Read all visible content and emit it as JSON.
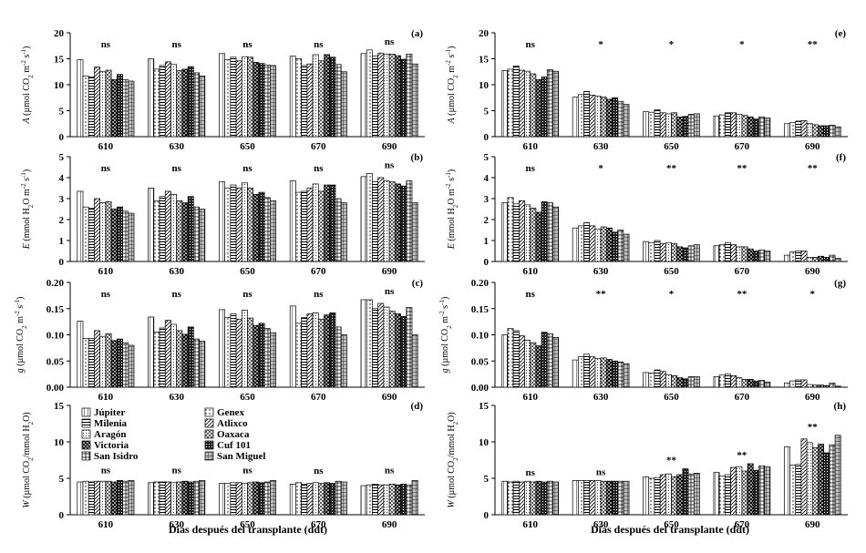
{
  "x_axis_label": "Días después del transplante (ddt)",
  "legend": [
    {
      "label": "Júpiter",
      "pattern": "p0"
    },
    {
      "label": "Genex",
      "pattern": "p1"
    },
    {
      "label": "Milenia",
      "pattern": "p2"
    },
    {
      "label": "Atlixco",
      "pattern": "p3"
    },
    {
      "label": "Aragón",
      "pattern": "p4"
    },
    {
      "label": "Oaxaca",
      "pattern": "p5"
    },
    {
      "label": "Victoria",
      "pattern": "p6"
    },
    {
      "label": "Cuf 101",
      "pattern": "p7"
    },
    {
      "label": "San Isidro",
      "pattern": "p8"
    },
    {
      "label": "San Miguel",
      "pattern": "p9"
    }
  ],
  "chart_data": [
    {
      "id": "a",
      "panel_label": "(a)",
      "type": "bar",
      "ylabel_parts": [
        "A",
        " (µmol CO",
        "2",
        " m",
        "-2",
        " s",
        "-1",
        ")"
      ],
      "ylim": [
        0,
        20
      ],
      "yticks": [
        0,
        5,
        10,
        15,
        20
      ],
      "categories": [
        "610",
        "630",
        "650",
        "670",
        "690"
      ],
      "significance": [
        "ns",
        "ns",
        "ns",
        "ns",
        "ns"
      ],
      "values": [
        [
          14.8,
          11.7,
          11.5,
          13.4,
          12.5,
          12.8,
          11.0,
          12.0,
          11.0,
          10.7
        ],
        [
          15.0,
          13.0,
          13.7,
          14.4,
          13.9,
          12.7,
          13.0,
          13.5,
          12.3,
          11.7
        ],
        [
          16.0,
          14.8,
          15.3,
          14.6,
          15.4,
          15.3,
          14.3,
          14.1,
          13.8,
          13.7
        ],
        [
          15.5,
          15.0,
          13.7,
          14.0,
          15.8,
          14.6,
          15.8,
          15.3,
          13.9,
          12.5
        ],
        [
          16.0,
          16.7,
          15.5,
          16.1,
          15.9,
          15.9,
          15.6,
          14.9,
          15.9,
          14.0
        ]
      ]
    },
    {
      "id": "e",
      "panel_label": "(e)",
      "type": "bar",
      "ylabel_parts": [
        "A",
        " (µmol CO",
        "2",
        " m",
        "-2",
        " s",
        "-1",
        ")"
      ],
      "ylim": [
        0,
        20
      ],
      "yticks": [
        0,
        5,
        10,
        15,
        20
      ],
      "categories": [
        "610",
        "630",
        "650",
        "670",
        "690"
      ],
      "significance": [
        "ns",
        "*",
        "*",
        "*",
        "**"
      ],
      "values": [
        [
          12.7,
          13.0,
          13.6,
          12.8,
          12.6,
          12.1,
          11.0,
          11.5,
          12.9,
          12.6
        ],
        [
          7.6,
          8.1,
          8.7,
          8.0,
          7.8,
          7.6,
          7.2,
          7.5,
          6.8,
          6.2
        ],
        [
          4.8,
          4.7,
          5.2,
          4.6,
          4.4,
          4.6,
          3.8,
          3.9,
          4.3,
          4.4
        ],
        [
          4.0,
          4.2,
          4.6,
          4.6,
          4.3,
          4.1,
          3.8,
          3.4,
          3.8,
          3.6
        ],
        [
          2.5,
          2.7,
          3.0,
          3.1,
          2.5,
          2.3,
          2.1,
          2.1,
          2.2,
          1.9
        ]
      ]
    },
    {
      "id": "b",
      "panel_label": "(b)",
      "type": "bar",
      "ylabel_parts": [
        "E",
        " (mmol H",
        "2",
        "O m",
        "-2",
        " s",
        "-1",
        ")"
      ],
      "ylim": [
        0,
        5
      ],
      "yticks": [
        0,
        1,
        2,
        3,
        4,
        5
      ],
      "categories": [
        "610",
        "630",
        "650",
        "670",
        "690"
      ],
      "significance": [
        "ns",
        "ns",
        "ns",
        "ns",
        "ns"
      ],
      "values": [
        [
          3.35,
          2.6,
          2.55,
          3.0,
          2.8,
          2.85,
          2.5,
          2.6,
          2.4,
          2.3
        ],
        [
          3.5,
          2.9,
          3.1,
          3.35,
          3.2,
          2.9,
          2.8,
          3.1,
          2.6,
          2.5
        ],
        [
          3.8,
          3.5,
          3.65,
          3.5,
          3.75,
          3.5,
          3.2,
          3.3,
          3.05,
          2.9
        ],
        [
          3.85,
          3.3,
          3.35,
          3.5,
          3.7,
          3.35,
          3.65,
          3.65,
          3.0,
          2.8
        ],
        [
          4.05,
          4.2,
          3.8,
          4.0,
          3.85,
          3.8,
          3.7,
          3.6,
          3.85,
          2.8
        ]
      ]
    },
    {
      "id": "f",
      "panel_label": "(f)",
      "type": "bar",
      "ylabel_parts": [
        "E",
        " (mmol H",
        "2",
        "O m",
        "-2",
        " s",
        "-1",
        ")"
      ],
      "ylim": [
        0,
        5
      ],
      "yticks": [
        0,
        1,
        2,
        3,
        4,
        5
      ],
      "categories": [
        "610",
        "630",
        "650",
        "670",
        "690"
      ],
      "significance": [
        "ns",
        "*",
        "**",
        "**",
        "**"
      ],
      "values": [
        [
          2.8,
          3.05,
          2.75,
          2.9,
          2.7,
          2.55,
          2.35,
          2.85,
          2.8,
          2.6
        ],
        [
          1.6,
          1.7,
          1.85,
          1.7,
          1.55,
          1.65,
          1.6,
          1.4,
          1.5,
          1.3
        ],
        [
          0.95,
          0.9,
          1.0,
          0.85,
          0.9,
          0.85,
          0.7,
          0.65,
          0.75,
          0.8
        ],
        [
          0.75,
          0.8,
          0.9,
          0.8,
          0.7,
          0.7,
          0.6,
          0.5,
          0.55,
          0.5
        ],
        [
          0.3,
          0.45,
          0.5,
          0.5,
          0.2,
          0.2,
          0.25,
          0.2,
          0.3,
          0.15
        ]
      ]
    },
    {
      "id": "c",
      "panel_label": "(c)",
      "type": "bar",
      "ylabel_parts": [
        "g",
        " (µmol CO",
        "2",
        " m",
        "-2",
        " s",
        "-1",
        ")"
      ],
      "ylim": [
        0,
        0.2
      ],
      "yticks": [
        0,
        0.05,
        0.1,
        0.15,
        0.2
      ],
      "yticklabels": [
        "0.00",
        "0.05",
        "0.10",
        "0.15",
        "0.20"
      ],
      "categories": [
        "610",
        "630",
        "650",
        "670",
        "690"
      ],
      "significance": [
        "ns",
        "ns",
        "ns",
        "ns",
        "ns"
      ],
      "values": [
        [
          0.126,
          0.093,
          0.093,
          0.108,
          0.097,
          0.102,
          0.089,
          0.092,
          0.085,
          0.08
        ],
        [
          0.134,
          0.105,
          0.113,
          0.128,
          0.12,
          0.108,
          0.101,
          0.115,
          0.092,
          0.088
        ],
        [
          0.148,
          0.133,
          0.14,
          0.13,
          0.147,
          0.132,
          0.118,
          0.122,
          0.112,
          0.104
        ],
        [
          0.155,
          0.122,
          0.133,
          0.14,
          0.142,
          0.13,
          0.138,
          0.142,
          0.115,
          0.1
        ],
        [
          0.167,
          0.167,
          0.15,
          0.16,
          0.153,
          0.145,
          0.14,
          0.135,
          0.152,
          0.1
        ]
      ]
    },
    {
      "id": "g",
      "panel_label": "(g)",
      "type": "bar",
      "ylabel_parts": [
        "g",
        " (µmol CO",
        "2",
        " m",
        "-2",
        " s",
        "-1",
        ")"
      ],
      "ylim": [
        0,
        0.2
      ],
      "yticks": [
        0,
        0.05,
        0.1,
        0.15,
        0.2
      ],
      "yticklabels": [
        "0.00",
        "0.05",
        "0.10",
        "0.15",
        "0.20"
      ],
      "categories": [
        "610",
        "630",
        "650",
        "670",
        "690"
      ],
      "significance": [
        "ns",
        "**",
        "*",
        "**",
        "*"
      ],
      "values": [
        [
          0.1,
          0.112,
          0.108,
          0.098,
          0.09,
          0.085,
          0.079,
          0.105,
          0.102,
          0.095
        ],
        [
          0.052,
          0.058,
          0.063,
          0.058,
          0.055,
          0.056,
          0.053,
          0.05,
          0.048,
          0.045
        ],
        [
          0.028,
          0.027,
          0.033,
          0.03,
          0.024,
          0.022,
          0.018,
          0.016,
          0.02,
          0.02
        ],
        [
          0.02,
          0.023,
          0.025,
          0.022,
          0.018,
          0.015,
          0.015,
          0.012,
          0.013,
          0.01
        ],
        [
          0.008,
          0.012,
          0.014,
          0.014,
          0.005,
          0.004,
          0.004,
          0.003,
          0.008,
          0.002
        ]
      ]
    },
    {
      "id": "d",
      "panel_label": "(d)",
      "type": "bar",
      "ylabel_parts": [
        "W",
        " (µmol CO",
        "2",
        "/mmol H",
        "2",
        "O)"
      ],
      "ylim": [
        0,
        15
      ],
      "yticks": [
        0,
        5,
        10,
        15
      ],
      "categories": [
        "610",
        "630",
        "650",
        "670",
        "690"
      ],
      "significance": [
        "ns",
        "ns",
        "ns",
        "ns",
        "ns"
      ],
      "values": [
        [
          4.5,
          4.6,
          4.5,
          4.6,
          4.6,
          4.6,
          4.5,
          4.7,
          4.6,
          4.7
        ],
        [
          4.4,
          4.5,
          4.5,
          4.5,
          4.4,
          4.5,
          4.6,
          4.5,
          4.6,
          4.7
        ],
        [
          4.3,
          4.3,
          4.4,
          4.4,
          4.3,
          4.4,
          4.5,
          4.4,
          4.5,
          4.7
        ],
        [
          4.2,
          4.4,
          4.2,
          4.3,
          4.4,
          4.3,
          4.4,
          4.3,
          4.6,
          4.5
        ],
        [
          4.0,
          4.1,
          4.2,
          4.1,
          4.1,
          4.2,
          4.1,
          4.2,
          4.1,
          4.7
        ]
      ]
    },
    {
      "id": "h",
      "panel_label": "(h)",
      "type": "bar",
      "ylabel_parts": [
        "W",
        " (µmol CO",
        "2",
        "/mmol H",
        "2",
        "O)"
      ],
      "ylim": [
        0,
        15
      ],
      "yticks": [
        0,
        5,
        10,
        15
      ],
      "categories": [
        "610",
        "630",
        "650",
        "670",
        "690"
      ],
      "significance": [
        "ns",
        "ns",
        "**",
        "**",
        "**"
      ],
      "values": [
        [
          4.6,
          4.5,
          4.6,
          4.5,
          4.6,
          4.5,
          4.6,
          4.5,
          4.6,
          4.5
        ],
        [
          4.7,
          4.7,
          4.7,
          4.7,
          4.7,
          4.6,
          4.6,
          4.6,
          4.6,
          4.6
        ],
        [
          5.2,
          5.0,
          5.1,
          5.5,
          5.6,
          5.2,
          5.5,
          6.3,
          5.6,
          5.7
        ],
        [
          5.8,
          5.3,
          5.5,
          6.5,
          6.6,
          6.0,
          7.0,
          6.1,
          6.7,
          6.6
        ],
        [
          9.3,
          6.8,
          6.9,
          10.4,
          9.9,
          9.2,
          9.7,
          8.5,
          9.6,
          10.9
        ]
      ]
    }
  ]
}
